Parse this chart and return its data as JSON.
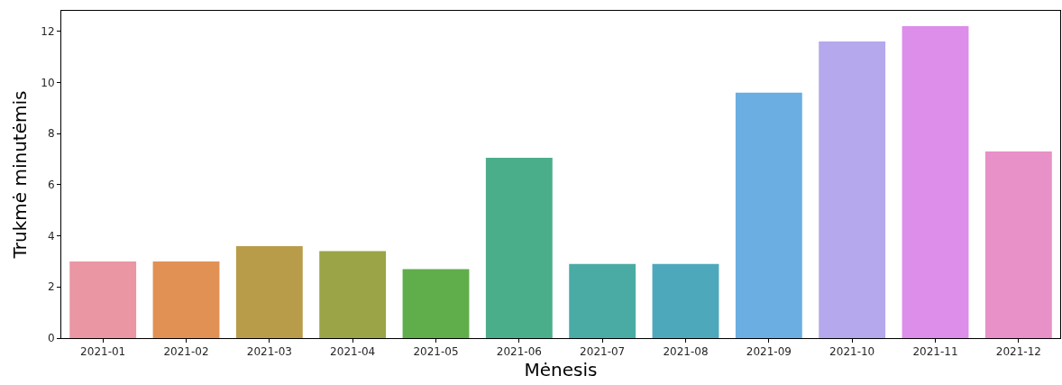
{
  "chart_data": {
    "type": "bar",
    "xlabel": "Mėnesis",
    "ylabel": "Trukmė minutėmis",
    "categories": [
      "2021-01",
      "2021-02",
      "2021-03",
      "2021-04",
      "2021-05",
      "2021-06",
      "2021-07",
      "2021-08",
      "2021-09",
      "2021-10",
      "2021-11",
      "2021-12"
    ],
    "values": [
      3.0,
      3.0,
      3.6,
      3.4,
      2.7,
      7.05,
      2.9,
      2.9,
      9.6,
      11.6,
      12.2,
      7.3
    ],
    "colors": [
      "#ea96a3",
      "#e19153",
      "#b89c49",
      "#9ba446",
      "#5fae4b",
      "#4bae8a",
      "#4aaba5",
      "#4ea8bc",
      "#6aaee2",
      "#b5a8ec",
      "#dd8dea",
      "#e890c8"
    ],
    "ylim": [
      0,
      12.8
    ],
    "yticks": [
      0,
      2,
      4,
      6,
      8,
      10,
      12
    ],
    "grid": false
  }
}
